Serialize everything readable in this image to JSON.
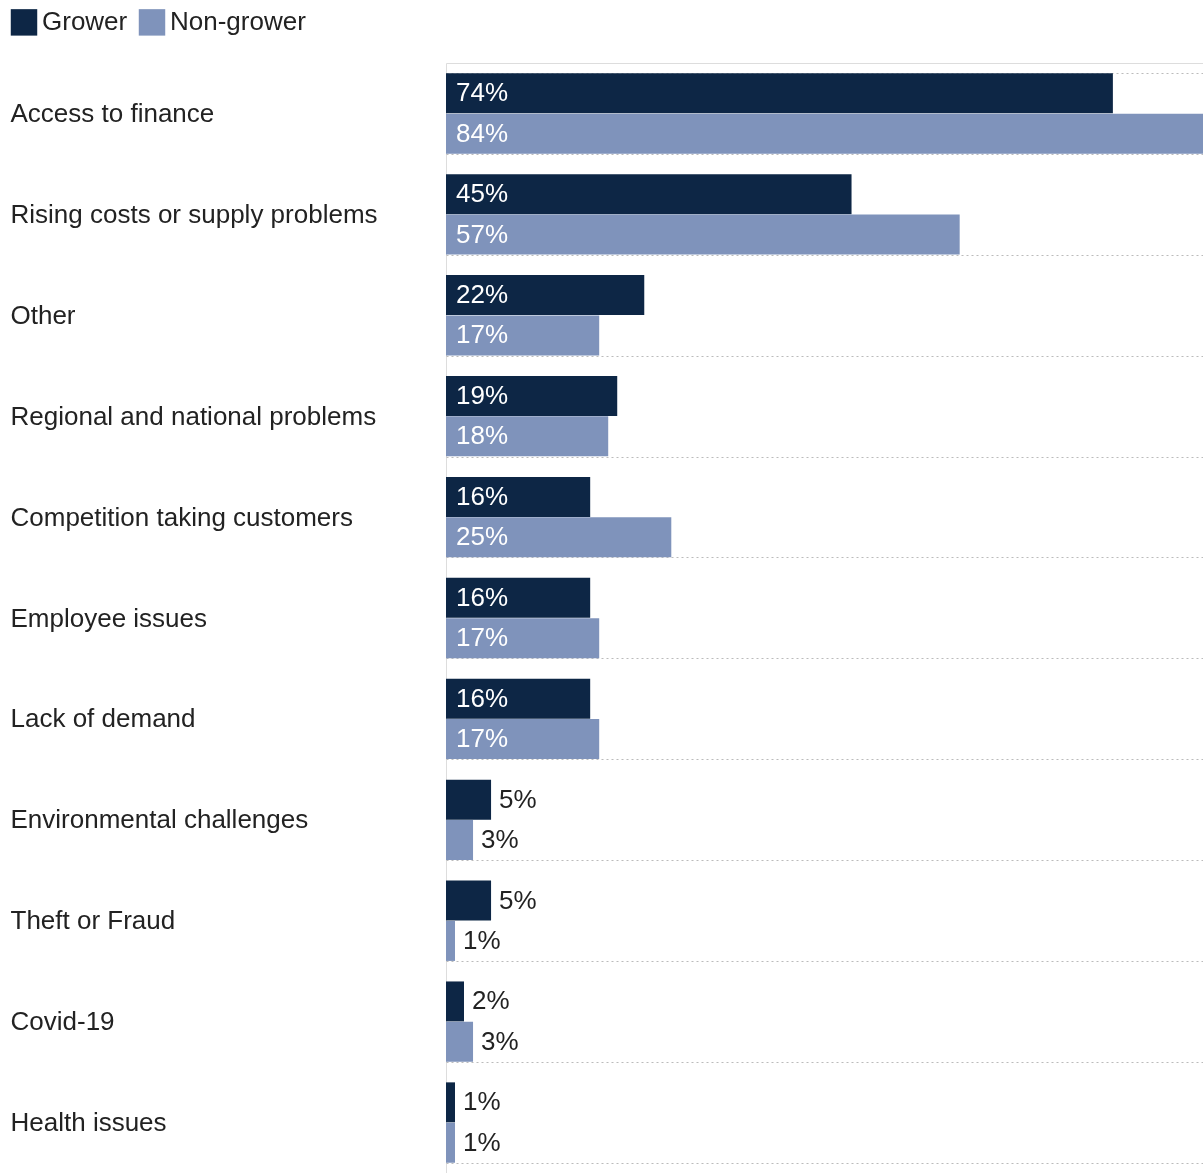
{
  "chart_data": {
    "type": "bar",
    "orientation": "horizontal",
    "legend": "top left",
    "grid": "y",
    "tick_labels": "y",
    "categories": [
      "Access to finance",
      "Rising costs or supply problems",
      "Other",
      "Regional and national problems",
      "Competition taking customers",
      "Employee issues",
      "Lack of demand",
      "Environmental challenges",
      "Theft or Fraud",
      "Covid-19",
      "Health issues"
    ],
    "series": [
      {
        "name": "Grower",
        "color": "#0d2645",
        "values": [
          74,
          45,
          22,
          19,
          16,
          16,
          16,
          5,
          5,
          2,
          1
        ],
        "value_labels": [
          "74%",
          "45%",
          "22%",
          "19%",
          "16%",
          "16%",
          "16%",
          "5%",
          "5%",
          "2%",
          "1%"
        ]
      },
      {
        "name": "Non-grower",
        "color": "#7f93bb",
        "values": [
          84,
          57,
          17,
          18,
          25,
          17,
          17,
          3,
          1,
          3,
          1
        ],
        "value_labels": [
          "84%",
          "57%",
          "17%",
          "18%",
          "25%",
          "17%",
          "17%",
          "3%",
          "1%",
          "3%",
          "1%"
        ]
      }
    ]
  }
}
